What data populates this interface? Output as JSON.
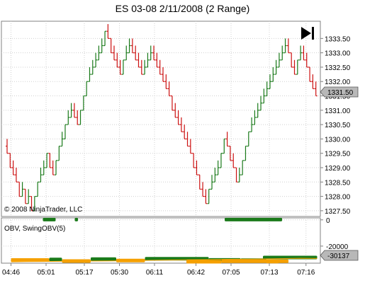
{
  "chart_data": [
    {
      "type": "range-bar",
      "title": "ES 03-08  2/11/2008 (2 Range)",
      "copyright": "© 2008 NinjaTrader, LLC",
      "ylim": [
        1327.3,
        1334.1
      ],
      "y_ticks": [
        "1333.50",
        "1333.00",
        "1332.50",
        "1332.00",
        "1331.50",
        "1331.00",
        "1330.50",
        "1330.00",
        "1329.50",
        "1329.00",
        "1328.50",
        "1328.00",
        "1327.50"
      ],
      "last_price_label": "1331.50",
      "x_ticks": [
        "04:46",
        "05:01",
        "05:17",
        "05:30",
        "06:11",
        "06:42",
        "07:05",
        "07:13",
        "07:16"
      ],
      "grid": true,
      "colors": {
        "up": "#1a7a1a",
        "down": "#cc1111"
      },
      "close_values": [
        1329.5,
        1329.0,
        1328.75,
        1328.5,
        1328.0,
        1328.25,
        1327.75,
        1328.0,
        1327.5,
        1328.0,
        1328.5,
        1328.75,
        1329.0,
        1329.5,
        1329.0,
        1328.75,
        1329.25,
        1329.75,
        1330.0,
        1330.5,
        1330.75,
        1331.0,
        1330.75,
        1330.5,
        1331.0,
        1331.5,
        1332.0,
        1332.25,
        1332.5,
        1332.75,
        1333.0,
        1333.25,
        1333.75,
        1333.5,
        1333.0,
        1332.75,
        1332.5,
        1332.25,
        1332.75,
        1333.0,
        1333.25,
        1333.0,
        1332.75,
        1332.5,
        1332.25,
        1332.5,
        1332.75,
        1333.0,
        1332.75,
        1332.5,
        1332.25,
        1332.0,
        1331.75,
        1331.5,
        1331.0,
        1330.75,
        1330.5,
        1330.25,
        1330.0,
        1329.75,
        1329.5,
        1329.0,
        1328.75,
        1328.25,
        1328.0,
        1327.75,
        1328.25,
        1328.5,
        1328.75,
        1329.0,
        1329.5,
        1330.0,
        1329.75,
        1329.25,
        1329.0,
        1328.5,
        1328.75,
        1329.25,
        1329.75,
        1330.25,
        1330.5,
        1330.75,
        1331.0,
        1331.25,
        1331.5,
        1331.75,
        1332.0,
        1332.25,
        1332.5,
        1332.75,
        1333.0,
        1333.25,
        1333.0,
        1332.5,
        1332.25,
        1332.75,
        1333.0,
        1332.75,
        1332.5,
        1332.0,
        1331.75,
        1331.5
      ]
    },
    {
      "type": "line",
      "label": "OBV, SwingOBV(5)",
      "ylim": [
        -33000,
        1500
      ],
      "y_ticks": [
        "0",
        "-20000"
      ],
      "last_value_label": "-30137",
      "colors": {
        "positive": "#1a7a1a",
        "negative": "#f5a000",
        "obv_line": "#f5a000"
      },
      "segments": [
        {
          "x0": 0.03,
          "x1": 0.15,
          "value": -30600,
          "sign": "negative"
        },
        {
          "x0": 0.15,
          "x1": 0.19,
          "value": -30200,
          "sign": "positive"
        },
        {
          "x0": 0.19,
          "x1": 0.28,
          "value": -31400,
          "sign": "negative"
        },
        {
          "x0": 0.28,
          "x1": 0.36,
          "value": -29900,
          "sign": "positive"
        },
        {
          "x0": 0.36,
          "x1": 0.45,
          "value": -31000,
          "sign": "negative"
        },
        {
          "x0": 0.45,
          "x1": 0.65,
          "value": -29600,
          "sign": "positive"
        },
        {
          "x0": 0.65,
          "x1": 0.75,
          "value": -30500,
          "sign": "positive"
        },
        {
          "x0": 0.75,
          "x1": 0.83,
          "value": -30700,
          "sign": "positive"
        },
        {
          "x0": 0.83,
          "x1": 0.87,
          "value": -31800,
          "sign": "negative"
        },
        {
          "x0": 0.58,
          "x1": 0.69,
          "value": -31900,
          "sign": "negative"
        },
        {
          "x0": 0.69,
          "x1": 0.9,
          "value": -31500,
          "sign": "negative"
        },
        {
          "x0": 0.82,
          "x1": 0.99,
          "value": -28700,
          "sign": "positive"
        },
        {
          "x0": 0.13,
          "x1": 0.17,
          "value": 200,
          "sign": "positive"
        },
        {
          "x0": 0.23,
          "x1": 0.24,
          "value": 200,
          "sign": "positive"
        },
        {
          "x0": 0.7,
          "x1": 0.88,
          "value": 200,
          "sign": "positive"
        }
      ],
      "obv_line": [
        -32000,
        -31800,
        -31700,
        -31600,
        -31500,
        -31400,
        -31300,
        -31200,
        -31000,
        -30800,
        -30600,
        -30400,
        -30300,
        -30100,
        -30000,
        -29900,
        -29700,
        -29500,
        -29300,
        -29400
      ]
    }
  ],
  "icons": {
    "play_end": "skip-to-end-icon"
  }
}
